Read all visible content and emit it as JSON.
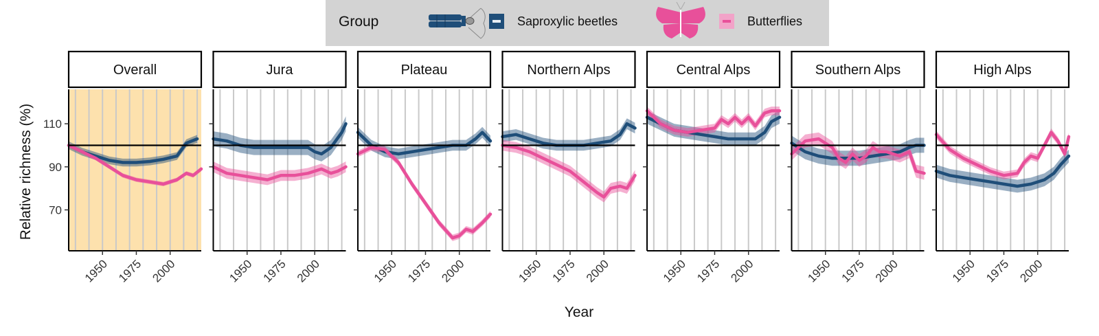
{
  "legend": {
    "title": "Group",
    "items": [
      {
        "label": "Saproxylic beetles",
        "color": "#1f4e79",
        "icon": "beetle-icon"
      },
      {
        "label": "Butterflies",
        "color": "#e8509a",
        "icon": "butterfly-icon"
      }
    ]
  },
  "chart_data": {
    "type": "line",
    "xlabel": "Year",
    "ylabel": "Relative richness (%)",
    "xlim": [
      1925,
      2023
    ],
    "ylim": [
      51,
      126
    ],
    "x_ticks": [
      1950,
      1975,
      2000
    ],
    "y_ticks": [
      70,
      90,
      110
    ],
    "reference_line": 100,
    "highlighted_panel": "Overall",
    "highlight_color": "#fde1ad",
    "grid": "vertical",
    "legend_position": "top",
    "panels": [
      {
        "title": "Overall",
        "series": [
          {
            "name": "Saproxylic beetles",
            "color": "#1f4e79",
            "band": 1.8,
            "x": [
              1925,
              1935,
              1945,
              1955,
              1965,
              1975,
              1985,
              1995,
              2005,
              2012,
              2020
            ],
            "y": [
              100,
              97,
              95,
              93,
              92,
              92,
              92.5,
              93.5,
              95,
              101,
              103
            ]
          },
          {
            "name": "Butterflies",
            "color": "#e8509a",
            "band": 1.0,
            "x": [
              1925,
              1935,
              1945,
              1955,
              1965,
              1975,
              1985,
              1995,
              2000,
              2005,
              2012,
              2017,
              2023
            ],
            "y": [
              100,
              97,
              94,
              90,
              86,
              84,
              83,
              82,
              83,
              84,
              87,
              86,
              89
            ]
          }
        ]
      },
      {
        "title": "Jura",
        "series": [
          {
            "name": "Saproxylic beetles",
            "color": "#1f4e79",
            "band": 3.5,
            "x": [
              1925,
              1935,
              1945,
              1955,
              1965,
              1975,
              1985,
              1995,
              2000,
              2005,
              2012,
              2020,
              2023
            ],
            "y": [
              103,
              102,
              100,
              99,
              99,
              99,
              99,
              99,
              97,
              96,
              99,
              106,
              110
            ]
          },
          {
            "name": "Butterflies",
            "color": "#e8509a",
            "band": 2.5,
            "x": [
              1925,
              1935,
              1945,
              1955,
              1965,
              1975,
              1985,
              1995,
              2005,
              2012,
              2017,
              2023
            ],
            "y": [
              90,
              87,
              86,
              85,
              84,
              86,
              86,
              87,
              89,
              87,
              88,
              90
            ]
          }
        ]
      },
      {
        "title": "Plateau",
        "series": [
          {
            "name": "Saproxylic beetles",
            "color": "#1f4e79",
            "band": 2.5,
            "x": [
              1925,
              1935,
              1945,
              1955,
              1965,
              1975,
              1985,
              1995,
              2005,
              2012,
              2017,
              2023
            ],
            "y": [
              106,
              100,
              97,
              96,
              97,
              98,
              99,
              100,
              100,
              103,
              106,
              102
            ]
          },
          {
            "name": "Butterflies",
            "color": "#e8509a",
            "band": 1.5,
            "x": [
              1925,
              1935,
              1945,
              1955,
              1965,
              1975,
              1985,
              1995,
              2000,
              2005,
              2010,
              2017,
              2023
            ],
            "y": [
              96,
              99,
              98,
              92,
              82,
              73,
              64,
              57,
              58,
              61,
              60,
              64,
              68
            ]
          }
        ]
      },
      {
        "title": "Northern Alps",
        "series": [
          {
            "name": "Saproxylic beetles",
            "color": "#1f4e79",
            "band": 2.5,
            "x": [
              1925,
              1935,
              1945,
              1955,
              1965,
              1975,
              1985,
              1995,
              2005,
              2012,
              2017,
              2023
            ],
            "y": [
              104,
              105,
              103,
              101,
              100,
              100,
              100,
              101,
              102,
              105,
              110,
              108
            ]
          },
          {
            "name": "Butterflies",
            "color": "#e8509a",
            "band": 2.5,
            "x": [
              1925,
              1935,
              1945,
              1955,
              1965,
              1975,
              1985,
              1995,
              2000,
              2005,
              2012,
              2017,
              2023
            ],
            "y": [
              100,
              99,
              97,
              94,
              91,
              88,
              83,
              78,
              76,
              80,
              81,
              80,
              86
            ]
          }
        ]
      },
      {
        "title": "Central Alps",
        "series": [
          {
            "name": "Saproxylic beetles",
            "color": "#1f4e79",
            "band": 3.0,
            "x": [
              1925,
              1935,
              1945,
              1955,
              1965,
              1975,
              1985,
              1995,
              2005,
              2012,
              2017,
              2023
            ],
            "y": [
              113,
              110,
              107,
              106,
              105,
              104,
              103,
              103,
              103,
              106,
              111,
              113
            ]
          },
          {
            "name": "Butterflies",
            "color": "#e8509a",
            "band": 2.0,
            "x": [
              1925,
              1935,
              1945,
              1955,
              1965,
              1975,
              1980,
              1985,
              1990,
              1995,
              2000,
              2005,
              2012,
              2017,
              2023
            ],
            "y": [
              116,
              110,
              107,
              106,
              107,
              108,
              112,
              110,
              113,
              110,
              113,
              109,
              115,
              116,
              116
            ]
          }
        ]
      },
      {
        "title": "Southern Alps",
        "series": [
          {
            "name": "Saproxylic beetles",
            "color": "#1f4e79",
            "band": 3.5,
            "x": [
              1925,
              1935,
              1945,
              1955,
              1965,
              1975,
              1985,
              1995,
              2005,
              2012,
              2017,
              2023
            ],
            "y": [
              101,
              97,
              95,
              94,
              94,
              94,
              95,
              96,
              97,
              99,
              100,
              100
            ]
          },
          {
            "name": "Butterflies",
            "color": "#e8509a",
            "band": 3.0,
            "x": [
              1925,
              1935,
              1945,
              1955,
              1960,
              1965,
              1970,
              1975,
              1980,
              1985,
              1990,
              1995,
              2000,
              2005,
              2012,
              2017,
              2023
            ],
            "y": [
              96,
              102,
              103,
              99,
              94,
              92,
              96,
              93,
              95,
              99,
              97,
              97,
              96,
              95,
              97,
              88,
              87
            ]
          }
        ]
      },
      {
        "title": "High Alps",
        "series": [
          {
            "name": "Saproxylic beetles",
            "color": "#1f4e79",
            "band": 3.0,
            "x": [
              1925,
              1935,
              1945,
              1955,
              1965,
              1975,
              1985,
              1995,
              2005,
              2012,
              2017,
              2023
            ],
            "y": [
              88,
              86,
              85,
              84,
              83,
              82,
              81,
              82,
              84,
              87,
              91,
              95
            ]
          },
          {
            "name": "Butterflies",
            "color": "#e8509a",
            "band": 1.8,
            "x": [
              1925,
              1935,
              1945,
              1955,
              1965,
              1975,
              1985,
              1990,
              1995,
              2000,
              2005,
              2010,
              2015,
              2020,
              2023
            ],
            "y": [
              105,
              98,
              94,
              91,
              88,
              86,
              87,
              92,
              95,
              94,
              100,
              106,
              102,
              96,
              104
            ]
          }
        ]
      }
    ]
  }
}
